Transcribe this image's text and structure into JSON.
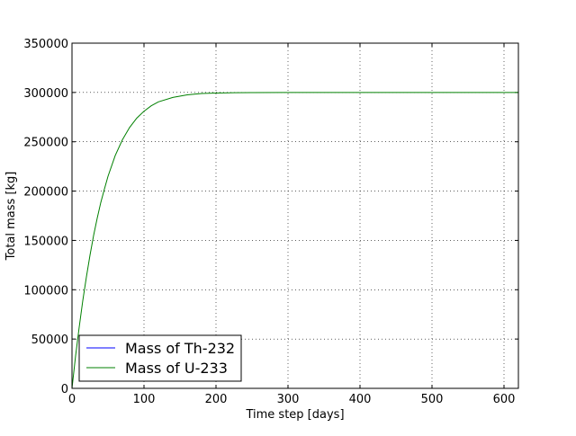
{
  "chart_data": {
    "type": "line",
    "title": "",
    "xlabel": "Time step [days]",
    "ylabel": "Total mass [kg]",
    "xlim": [
      0,
      620
    ],
    "ylim": [
      0,
      350000
    ],
    "xticks": [
      0,
      100,
      200,
      300,
      400,
      500,
      600
    ],
    "yticks": [
      0,
      50000,
      100000,
      150000,
      200000,
      250000,
      300000,
      350000
    ],
    "grid": true,
    "legend_position": "lower-left",
    "series": [
      {
        "name": "Mass of Th-232",
        "color": "#0000ff",
        "x": [
          0,
          10,
          20,
          30,
          40,
          50,
          60,
          70,
          80,
          90,
          100,
          120,
          140,
          160,
          180,
          200,
          250,
          300,
          400,
          500,
          620
        ],
        "y": [
          0,
          0,
          0,
          0,
          0,
          0,
          0,
          0,
          0,
          0,
          0,
          0,
          0,
          0,
          0,
          0,
          0,
          0,
          0,
          0,
          0
        ]
      },
      {
        "name": "Mass of U-233",
        "color": "#008000",
        "x": [
          0,
          5,
          10,
          15,
          20,
          25,
          30,
          35,
          40,
          45,
          50,
          60,
          70,
          80,
          90,
          100,
          110,
          120,
          140,
          160,
          180,
          200,
          225,
          250,
          300,
          350,
          400,
          500,
          620
        ],
        "y": [
          0,
          33000,
          62000,
          89000,
          113000,
          135000,
          155000,
          172500,
          188500,
          202000,
          215000,
          236000,
          252000,
          264500,
          274000,
          281000,
          286500,
          290500,
          295000,
          297600,
          298900,
          299400,
          299750,
          299880,
          299970,
          299990,
          300000,
          300000,
          300000
        ]
      }
    ]
  }
}
